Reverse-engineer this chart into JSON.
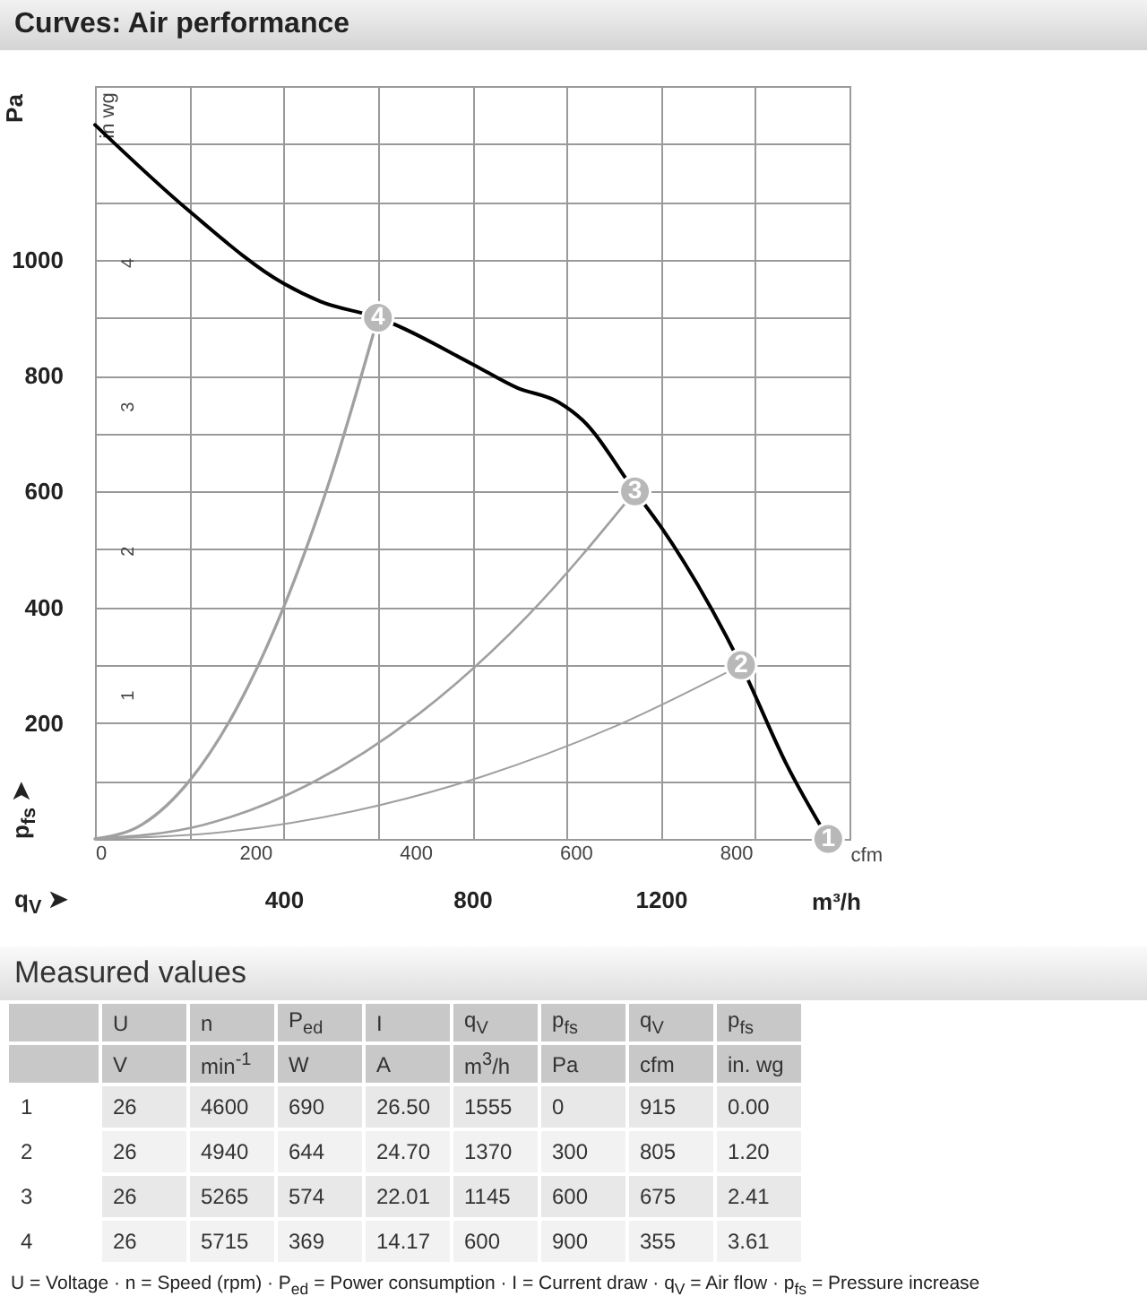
{
  "chart_data": [
    {
      "type": "line",
      "title": "Curves: Air performance",
      "xlabel": "m³/h",
      "ylabel": "Pa",
      "x2label": "cfm",
      "y2label": "in wg",
      "xlim": [
        0,
        1600
      ],
      "xticks": [
        {
          "value": 200,
          "label": null
        },
        400,
        {
          "value": 600,
          "label": null
        },
        800,
        {
          "value": 1000,
          "label": null
        },
        1200,
        {
          "value": 1400,
          "label": null
        }
      ],
      "x2lim": [
        0,
        942
      ],
      "x2ticks": [
        0,
        200,
        400,
        600,
        800
      ],
      "ylim": [
        0,
        1300
      ],
      "yticks": [
        {
          "value": 100,
          "label": null
        },
        200,
        {
          "value": 300,
          "label": null
        },
        400,
        {
          "value": 500,
          "label": null
        },
        600,
        {
          "value": 700,
          "label": null
        },
        800,
        {
          "value": 900,
          "label": null
        },
        1000,
        {
          "value": 1100,
          "label": null
        },
        {
          "value": 1200,
          "label": null
        }
      ],
      "y2lim": [
        0,
        5.22
      ],
      "y2ticks": [
        1,
        2,
        3,
        4
      ],
      "grid": true,
      "series": [
        {
          "color": "#000000",
          "x": [
            0,
            200,
            400,
            478,
            600,
            800,
            895,
            983,
            1034,
            1145,
            1200,
            1370,
            1467,
            1555
          ],
          "values": [
            1233,
            1084,
            959,
            928,
            900,
            820,
            779,
            754,
            723,
            600,
            539,
            300,
            128,
            0
          ]
        },
        {
          "color": "#a0a0a0",
          "x": [
            0,
            100,
            200,
            300,
            400,
            500,
            600
          ],
          "values": [
            0,
            25,
            100,
            225,
            400,
            625,
            900
          ]
        },
        {
          "color": "#a0a0a0",
          "x": [
            0,
            229,
            458,
            687,
            916,
            1145
          ],
          "values": [
            0,
            24,
            96,
            216,
            384,
            600
          ]
        },
        {
          "color": "#a0a0a0",
          "x": [
            0,
            274,
            548,
            822,
            1096,
            1370
          ],
          "values": [
            0,
            12,
            48,
            108,
            192,
            300
          ]
        }
      ],
      "annotations": [
        "q$_{V}$ ➤",
        "p$_{fs}$ ➤",
        {
          "text": "1",
          "x": 1555,
          "y": 0
        },
        {
          "text": "2",
          "x": 1370,
          "y": 300
        },
        {
          "text": "3",
          "x": 1145,
          "y": 600
        },
        {
          "text": "4",
          "x": 600,
          "y": 900
        }
      ]
    },
    {
      "type": "heatmap",
      "title": "Measured values",
      "categories": [
        "U",
        "n",
        "P$_{ed}$",
        "I",
        "q$_{V}$",
        "p$_{fs}$",
        "q$_{V}$",
        "p$_{fs}$"
      ],
      "y_categories": [
        "1",
        "2",
        "3",
        "4"
      ],
      "cells": [
        [
          26,
          4600,
          690,
          26.5,
          1555,
          0,
          915,
          0
        ],
        [
          26,
          4940,
          644,
          24.7,
          1370,
          300,
          805,
          1.2
        ],
        [
          26,
          5265,
          574,
          22.01,
          1145,
          600,
          675,
          2.41
        ],
        [
          26,
          5715,
          369,
          14.17,
          600,
          900,
          355,
          3.61
        ]
      ],
      "cell_labels": [
        [
          "26",
          "4600",
          "690",
          "26.50",
          "1555",
          "0",
          "915",
          "0.00"
        ],
        [
          "26",
          "4940",
          "644",
          "24.70",
          "1370",
          "300",
          "805",
          "1.20"
        ],
        [
          "26",
          "5265",
          "574",
          "22.01",
          "1145",
          "600",
          "675",
          "2.41"
        ],
        [
          "26",
          "5715",
          "369",
          "14.17",
          "600",
          "900",
          "355",
          "3.61"
        ]
      ],
      "annotations": [
        "V",
        "min$^{-1}$",
        "W",
        "A",
        "m$^{3}$/h",
        "Pa",
        "cfm",
        "in. wg",
        "U = Voltage · n = Speed (rpm) · P$_{ed}$ = Power consumption · I = Current draw · q$_{V}$ = Air flow · p$_{fs}$ = Pressure increase"
      ]
    }
  ]
}
